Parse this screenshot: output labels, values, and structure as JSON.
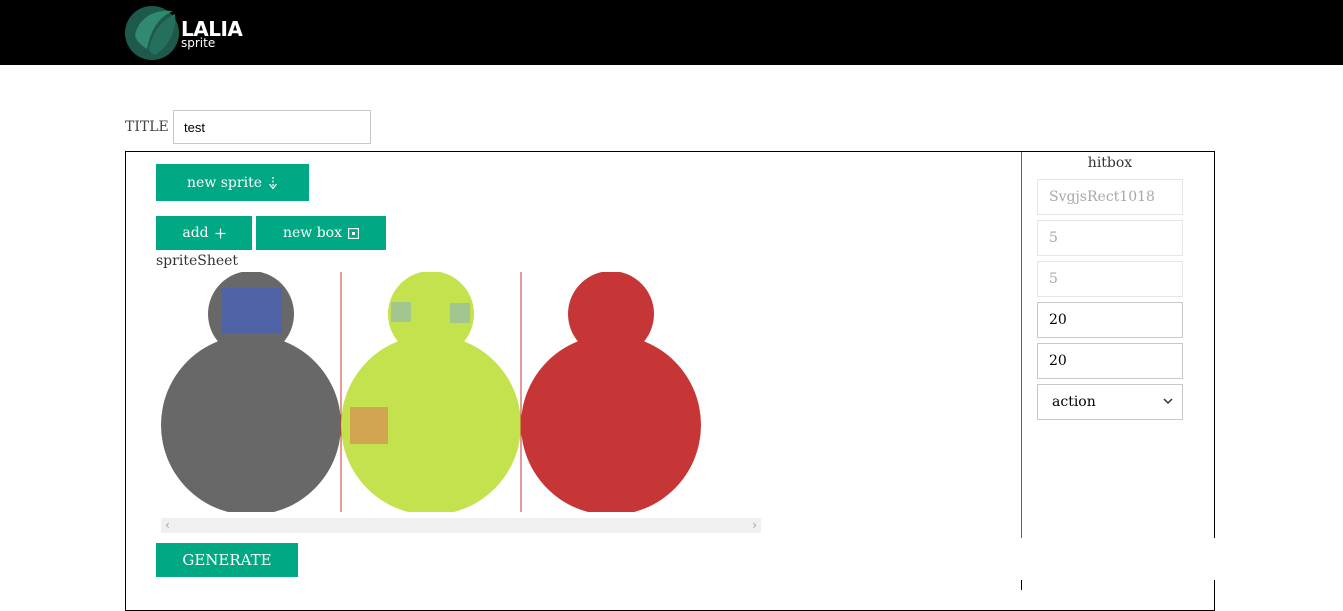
{
  "header": {
    "logo_main": "LALIA",
    "logo_sub": "sprite",
    "colors": {
      "bar": "#000000",
      "logo_dark": "#1e5a4b",
      "logo_light": "#2f8a6f"
    }
  },
  "title_field": {
    "label": "TITLE",
    "value": "test"
  },
  "toolbar": {
    "new_sprite_label": "new sprite",
    "new_sprite_icon": "download-arrow-icon",
    "add_label": "add",
    "add_icon": "plus-icon",
    "new_box_label": "new box",
    "new_box_icon": "box-icon"
  },
  "sprite_sheet": {
    "label": "spriteSheet",
    "frames": [
      {
        "name": "frame-1",
        "body_color": "#686868",
        "hitboxes": [
          {
            "color": "#4f62a6"
          }
        ]
      },
      {
        "name": "frame-2",
        "body_color": "#c4e24d",
        "hitboxes": [
          {
            "color": "#a3c58f"
          },
          {
            "color": "#a3c58f"
          },
          {
            "color": "#d2a651"
          }
        ]
      },
      {
        "name": "frame-3",
        "body_color": "#c63636",
        "hitboxes": []
      }
    ],
    "divider_color": "#c0392b"
  },
  "hitbox": {
    "title": "hitbox",
    "id_value": "SvgjsRect1018",
    "x_value": "5",
    "y_value": "5",
    "width_value": "20",
    "height_value": "20",
    "type_selected": "action"
  },
  "generate_label": "GENERATE",
  "accent_color": "#00a884"
}
